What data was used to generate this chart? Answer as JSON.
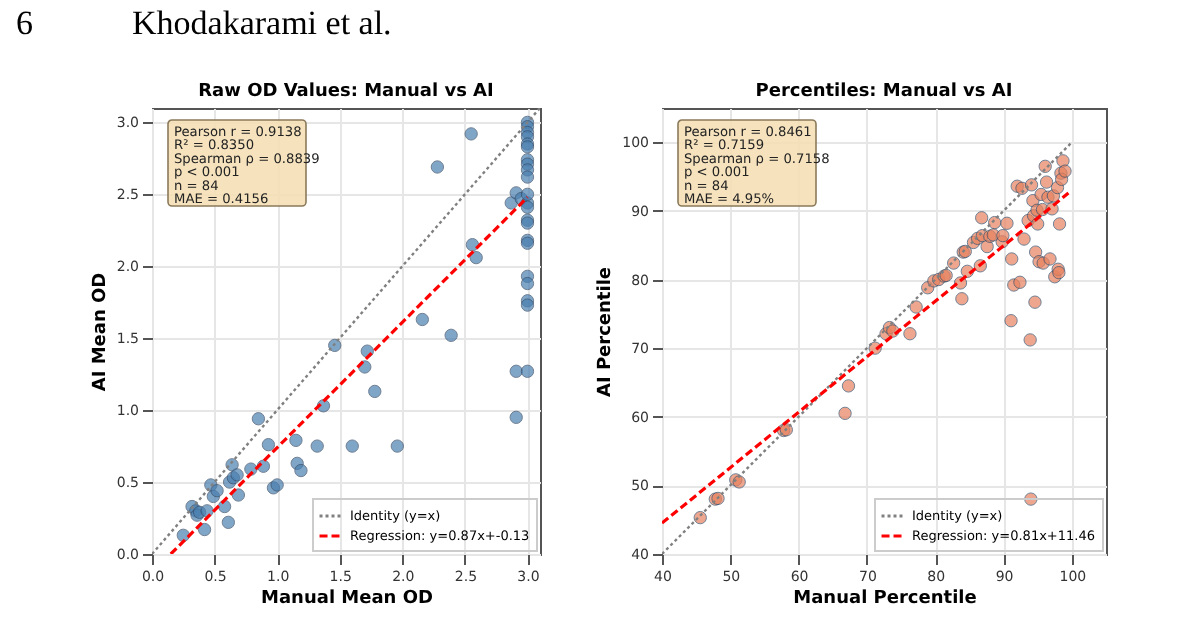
{
  "chart_data": [
    {
      "type": "scatter",
      "title": "Raw OD Values: Manual vs AI",
      "xlabel": "Manual Mean OD",
      "ylabel": "AI Mean OD",
      "xlim": [
        0,
        3.1
      ],
      "ylim": [
        0,
        3.1
      ],
      "xticks": [
        {
          "value": 0,
          "label": "0.0"
        },
        0.5,
        {
          "value": 1,
          "label": "1.0"
        },
        1.5,
        {
          "value": 2,
          "label": "2.0"
        },
        2.5,
        {
          "value": 3,
          "label": "3.0"
        }
      ],
      "yticks": [
        {
          "value": 0,
          "label": "0.0"
        },
        0.5,
        {
          "value": 1,
          "label": "1.0"
        },
        1.5,
        {
          "value": 2,
          "label": "2.0"
        },
        2.5,
        {
          "value": 3,
          "label": "3.0"
        }
      ],
      "grid": true,
      "legend": "bottom right",
      "annotations": [
        "6",
        "Khodakarami et al.",
        "Pearson r = 0.9138",
        "R² = 0.8350",
        "Spearman ρ = 0.8839",
        "p < 0.001",
        "n = 84",
        "MAE = 0.4156"
      ],
      "series": [
        {
          "marker": "circle",
          "color": "#4a7fb0",
          "x": [
            0.25,
            0.32,
            0.35,
            0.36,
            0.38,
            0.42,
            0.44,
            0.47,
            0.49,
            0.52,
            0.58,
            0.61,
            0.62,
            0.64,
            0.65,
            0.68,
            0.69,
            0.79,
            0.85,
            0.89,
            0.93,
            0.97,
            1.0,
            1.15,
            1.16,
            1.19,
            1.32,
            1.37,
            1.46,
            1.6,
            1.7,
            1.72,
            1.78,
            1.96,
            2.16,
            2.28,
            2.39,
            2.55,
            2.56,
            2.59,
            2.87,
            2.91,
            2.91,
            2.91,
            2.95,
            3.0,
            3.0,
            3.0,
            3.0,
            3.0,
            3.0,
            3.0,
            3.0,
            3.0,
            3.0,
            3.0,
            3.0,
            3.0,
            3.0,
            3.0,
            3.0,
            3.0,
            3.0,
            3.0,
            3.0,
            3.0,
            3.0
          ],
          "values": [
            0.13,
            0.33,
            0.3,
            0.27,
            0.29,
            0.17,
            0.3,
            0.48,
            0.4,
            0.44,
            0.33,
            0.22,
            0.5,
            0.62,
            0.53,
            0.55,
            0.41,
            0.59,
            0.94,
            0.61,
            0.76,
            0.46,
            0.48,
            0.79,
            0.63,
            0.58,
            0.75,
            1.03,
            1.45,
            0.75,
            1.3,
            1.41,
            1.13,
            0.75,
            1.63,
            2.69,
            1.52,
            2.92,
            2.15,
            2.06,
            2.44,
            2.51,
            1.27,
            0.95,
            2.47,
            3.0,
            2.97,
            2.93,
            2.9,
            2.85,
            2.83,
            2.74,
            2.71,
            2.67,
            2.62,
            2.44,
            2.41,
            2.32,
            2.3,
            2.18,
            2.16,
            1.93,
            1.88,
            1.76,
            1.73,
            1.27,
            2.5
          ]
        },
        {
          "type": "line",
          "name": "Identity (y=x)",
          "color": "#808080",
          "line_style": "dotted",
          "x": [
            0,
            3.1
          ],
          "values": [
            0,
            3.1
          ]
        },
        {
          "type": "line",
          "name": "Regression: y=0.87x+-0.13",
          "color": "#ff0000",
          "line_style": "dashed",
          "x": [
            0.15,
            3.0
          ],
          "values": [
            0,
            2.48
          ]
        }
      ]
    },
    {
      "type": "scatter",
      "title": "Percentiles: Manual vs AI",
      "xlabel": "Manual Percentile",
      "ylabel": "AI Percentile",
      "xlim": [
        40,
        105
      ],
      "ylim": [
        40,
        105
      ],
      "xticks": [
        40,
        50,
        60,
        70,
        80,
        90,
        100
      ],
      "yticks": [
        40,
        50,
        60,
        70,
        80,
        90,
        100
      ],
      "grid": true,
      "legend": "bottom right",
      "annotations": [
        "Pearson r = 0.8461",
        "R² = 0.7159",
        "Spearman ρ = 0.7158",
        "p < 0.001",
        "n = 84",
        "MAE = 4.95%"
      ],
      "series": [
        {
          "marker": "circle",
          "color": "#e8825f",
          "x": [
            45.6,
            47.8,
            48.2,
            50.8,
            51.3,
            57.8,
            58.2,
            66.8,
            67.3,
            71.2,
            72.8,
            73.3,
            73.8,
            76.3,
            77.2,
            78.9,
            79.8,
            80.5,
            81.3,
            81.6,
            82.7,
            83.7,
            83.9,
            84.1,
            84.4,
            84.7,
            85.6,
            86.2,
            86.6,
            86.8,
            86.9,
            87.6,
            88,
            88.5,
            88.7,
            89.8,
            89.9,
            90.5,
            91.1,
            91.2,
            91.5,
            92,
            92.4,
            92.7,
            93,
            93.6,
            93.9,
            94,
            94.1,
            94.3,
            94.4,
            94.6,
            94.7,
            94.9,
            95,
            95.2,
            95.5,
            95.7,
            95.8,
            96.1,
            96.3,
            96.5,
            96.8,
            97.1,
            97.3,
            97.5,
            97.9,
            98,
            98.1,
            98.2,
            98.4,
            98.5,
            98.7,
            99
          ],
          "values": [
            45.3,
            48,
            48.1,
            50.8,
            50.5,
            58,
            58.1,
            60.5,
            64.5,
            70,
            72.1,
            73,
            72.5,
            72.1,
            76,
            78.8,
            79.8,
            80,
            80.5,
            80.6,
            82.4,
            79.5,
            77.2,
            84,
            84.1,
            81.2,
            85.4,
            86,
            82,
            89,
            86.4,
            84.8,
            86.3,
            86.5,
            88.3,
            85.5,
            86.4,
            88.2,
            74,
            83,
            79.2,
            93.6,
            79.6,
            93.3,
            85.9,
            88.6,
            71.2,
            48,
            93.8,
            91.5,
            89.3,
            76.7,
            84,
            90.1,
            88.1,
            82.6,
            92.4,
            90.2,
            82.4,
            96.5,
            94.2,
            92,
            83,
            90.3,
            92.2,
            80.4,
            93.4,
            81.5,
            81,
            88.1,
            95.5,
            94.6,
            97.3,
            95.8
          ]
        },
        {
          "type": "line",
          "name": "Identity (y=x)",
          "color": "#808080",
          "line_style": "dotted",
          "x": [
            40,
            100
          ],
          "values": [
            40,
            100
          ]
        },
        {
          "type": "line",
          "name": "Regression: y=0.81x+11.46",
          "color": "#ff0000",
          "line_style": "dashed",
          "x": [
            40,
            99.5
          ],
          "values": [
            44.5,
            92.6
          ]
        }
      ]
    }
  ]
}
